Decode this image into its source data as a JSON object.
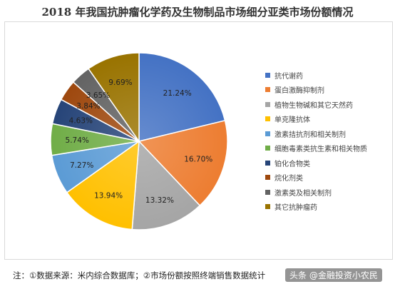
{
  "chart_data": {
    "type": "pie",
    "title": "2018 年我国抗肿瘤化学药及生物制品市场细分亚类市场份额情况",
    "legend_position": "right",
    "slices": [
      {
        "label": "抗代谢药",
        "value": 21.24,
        "value_label": "21.24%",
        "color": "#4472c4"
      },
      {
        "label": "蛋白激酶抑制剂",
        "value": 16.7,
        "value_label": "16.70%",
        "color": "#ed7d31"
      },
      {
        "label": "植物生物碱和其它天然药",
        "value": 13.32,
        "value_label": "13.32%",
        "color": "#a5a5a5"
      },
      {
        "label": "单克隆抗体",
        "value": 13.94,
        "value_label": "13.94%",
        "color": "#ffc000"
      },
      {
        "label": "激素拮抗剂和相关制剂",
        "value": 7.27,
        "value_label": "7.27%",
        "color": "#5b9bd5"
      },
      {
        "label": "细胞毒素类抗生素和相关物质",
        "value": 5.74,
        "value_label": "5.74%",
        "color": "#70ad47"
      },
      {
        "label": "铂化合物类",
        "value": 4.63,
        "value_label": "4.63%",
        "color": "#264478"
      },
      {
        "label": "烷化剂类",
        "value": 3.84,
        "value_label": "3.84%",
        "color": "#9e480e"
      },
      {
        "label": "激素类及相关制剂",
        "value": 3.65,
        "value_label": "3.65%",
        "color": "#636363"
      },
      {
        "label": "其它抗肿瘤药",
        "value": 9.69,
        "value_label": "9.69%",
        "color": "#997300"
      }
    ]
  },
  "footnote": "注：①数据来源：米内综合数据库；②市场份额按照终端销售数据统计",
  "watermark": "头条 @金融投资小农民"
}
